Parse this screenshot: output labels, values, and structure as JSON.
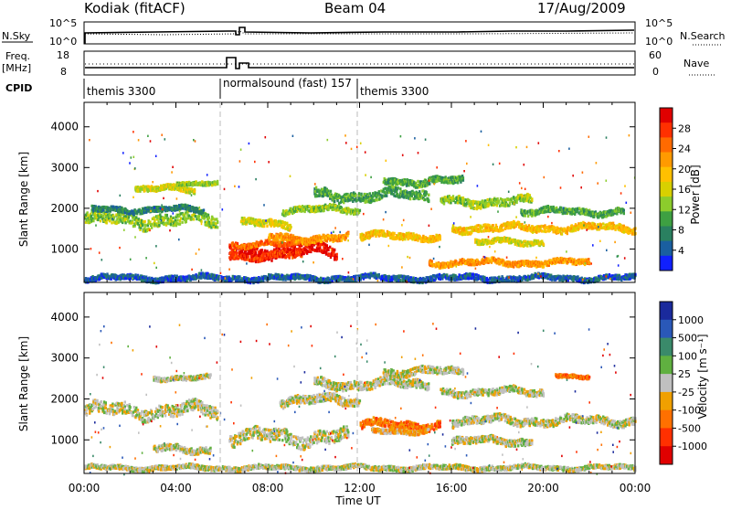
{
  "header": {
    "radar": "Kodiak (fitACF)",
    "beam": "Beam 04",
    "date": "17/Aug/2009"
  },
  "top_panels": {
    "nsky_label": "N.Sky",
    "nsearch_label": "N.Search",
    "nsky_ticks": [
      "10^5",
      "10^0"
    ],
    "freq_label_1": "Freq.",
    "freq_label_2": "[MHz]",
    "freq_ticks": [
      "18",
      "8"
    ],
    "nave_label": "Nave",
    "nave_ticks": [
      "60",
      "0"
    ],
    "cpid_label": "CPID",
    "cpid_segments": [
      {
        "label": "themis 3300",
        "start_hour": 0
      },
      {
        "label": "normalsound (fast) 157",
        "start_hour": 6
      },
      {
        "label": "themis 3300",
        "start_hour": 12
      }
    ]
  },
  "chart_data": [
    {
      "type": "heatmap",
      "name": "power-panel",
      "ylabel": "Slant Range [km]",
      "xlim": [
        0,
        24
      ],
      "ylim": [
        180,
        4600
      ],
      "yticks": [
        1000,
        2000,
        3000,
        4000
      ],
      "colorbar": {
        "label": "Power [dB]",
        "ticks": [
          "28",
          "24",
          "20",
          "16",
          "12",
          "8",
          "4"
        ],
        "colors": [
          "#e00000",
          "#ff3000",
          "#ff6a00",
          "#ff9a00",
          "#ffc000",
          "#d8d000",
          "#8ccc2c",
          "#3ea042",
          "#2a8060",
          "#1a5fa0",
          "#1020ff"
        ]
      },
      "bands": [
        {
          "t0": 0.0,
          "t1": 5.8,
          "r": 1750,
          "w": 280,
          "c": 6
        },
        {
          "t0": 0.3,
          "t1": 5.2,
          "r": 2000,
          "w": 120,
          "c": 8
        },
        {
          "t0": 2.2,
          "t1": 4.8,
          "r": 2500,
          "w": 130,
          "c": 5
        },
        {
          "t0": 4.0,
          "t1": 5.8,
          "r": 2660,
          "w": 90,
          "c": 6
        },
        {
          "t0": 6.3,
          "t1": 11.0,
          "r": 1000,
          "w": 260,
          "c": 0
        },
        {
          "t0": 6.3,
          "t1": 9.5,
          "r": 870,
          "w": 150,
          "c": 1
        },
        {
          "t0": 6.4,
          "t1": 9.2,
          "r": 1150,
          "w": 120,
          "c": 2
        },
        {
          "t0": 8.0,
          "t1": 11.5,
          "r": 1300,
          "w": 160,
          "c": 3
        },
        {
          "t0": 6.8,
          "t1": 9.0,
          "r": 1650,
          "w": 160,
          "c": 5
        },
        {
          "t0": 8.6,
          "t1": 12.0,
          "r": 2000,
          "w": 140,
          "c": 6
        },
        {
          "t0": 10.0,
          "t1": 15.0,
          "r": 2350,
          "w": 220,
          "c": 7
        },
        {
          "t0": 12.0,
          "t1": 15.5,
          "r": 1350,
          "w": 150,
          "c": 4
        },
        {
          "t0": 13.0,
          "t1": 16.5,
          "r": 2700,
          "w": 160,
          "c": 7
        },
        {
          "t0": 15.5,
          "t1": 19.5,
          "r": 2200,
          "w": 180,
          "c": 6
        },
        {
          "t0": 16.0,
          "t1": 24.0,
          "r": 1550,
          "w": 160,
          "c": 4
        },
        {
          "t0": 17.0,
          "t1": 20.0,
          "r": 1200,
          "w": 120,
          "c": 5
        },
        {
          "t0": 15.0,
          "t1": 22.0,
          "r": 700,
          "w": 130,
          "c": 3
        },
        {
          "t0": 19.0,
          "t1": 23.5,
          "r": 1950,
          "w": 140,
          "c": 7
        },
        {
          "t0": 0.0,
          "t1": 24.0,
          "r": 320,
          "w": 120,
          "c": 9
        }
      ]
    },
    {
      "type": "heatmap",
      "name": "velocity-panel",
      "ylabel": "Slant Range [km]",
      "xlabel": "Time UT",
      "xlim": [
        0,
        24
      ],
      "ylim": [
        180,
        4600
      ],
      "yticks": [
        1000,
        2000,
        3000,
        4000
      ],
      "xticks": [
        "00:00",
        "04:00",
        "08:00",
        "12:00",
        "16:00",
        "20:00",
        "00:00"
      ],
      "colorbar": {
        "label": "Velocity [m s⁻¹]",
        "ticks": [
          "1000",
          "500",
          "100",
          "25",
          "-25",
          "-100",
          "-500",
          "-1000"
        ],
        "colors": [
          "#1a2a9c",
          "#2a58b8",
          "#3a8a6a",
          "#60b040",
          "#c0c0c0",
          "#f0a000",
          "#ff7000",
          "#ff3000",
          "#e00000"
        ]
      },
      "bands": [
        {
          "t0": 0.0,
          "t1": 5.8,
          "r": 1750,
          "w": 280,
          "c": 4
        },
        {
          "t0": 6.3,
          "t1": 11.5,
          "r": 1100,
          "w": 300,
          "c": 4
        },
        {
          "t0": 3.0,
          "t1": 5.5,
          "r": 800,
          "w": 150,
          "c": 4
        },
        {
          "t0": 8.5,
          "t1": 12.0,
          "r": 2000,
          "w": 200,
          "c": 4
        },
        {
          "t0": 10.0,
          "t1": 15.0,
          "r": 2400,
          "w": 200,
          "c": 4
        },
        {
          "t0": 12.0,
          "t1": 15.5,
          "r": 1400,
          "w": 180,
          "c": 6
        },
        {
          "t0": 12.5,
          "t1": 15.0,
          "r": 1250,
          "w": 100,
          "c": 5
        },
        {
          "t0": 13.0,
          "t1": 16.5,
          "r": 2700,
          "w": 160,
          "c": 4
        },
        {
          "t0": 15.5,
          "t1": 20.0,
          "r": 2200,
          "w": 160,
          "c": 4
        },
        {
          "t0": 16.0,
          "t1": 24.0,
          "r": 1500,
          "w": 180,
          "c": 4
        },
        {
          "t0": 16.0,
          "t1": 19.5,
          "r": 1000,
          "w": 160,
          "c": 4
        },
        {
          "t0": 3.0,
          "t1": 5.5,
          "r": 2550,
          "w": 100,
          "c": 4
        },
        {
          "t0": 20.5,
          "t1": 22.0,
          "r": 2600,
          "w": 80,
          "c": 6
        },
        {
          "t0": 0.0,
          "t1": 24.0,
          "r": 350,
          "w": 100,
          "c": 4
        }
      ]
    }
  ]
}
